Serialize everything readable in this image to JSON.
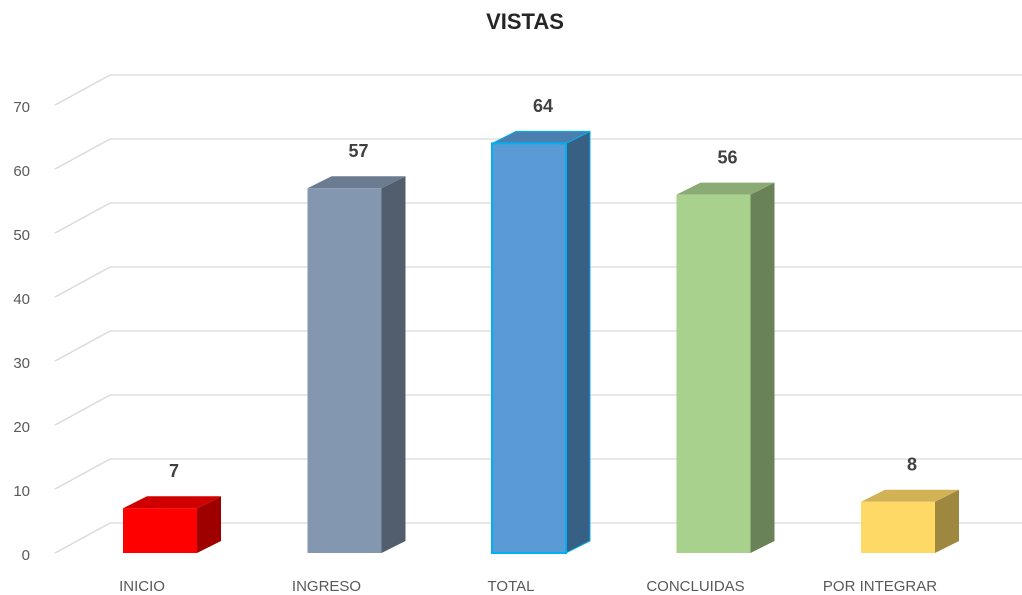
{
  "chart_data": {
    "type": "bar3d",
    "title": "VISTAS",
    "categories": [
      "INICIO",
      "INGRESO",
      "TOTAL",
      "CONCLUIDAS",
      "POR INTEGRAR"
    ],
    "values": [
      7,
      57,
      64,
      56,
      8
    ],
    "colors": [
      "#ff0000",
      "#8497b0",
      "#5b9bd5",
      "#a9d18e",
      "#ffd966"
    ],
    "ylim": [
      0,
      70
    ],
    "yticks": [
      0,
      10,
      20,
      30,
      40,
      50,
      60,
      70
    ],
    "grid": true
  }
}
